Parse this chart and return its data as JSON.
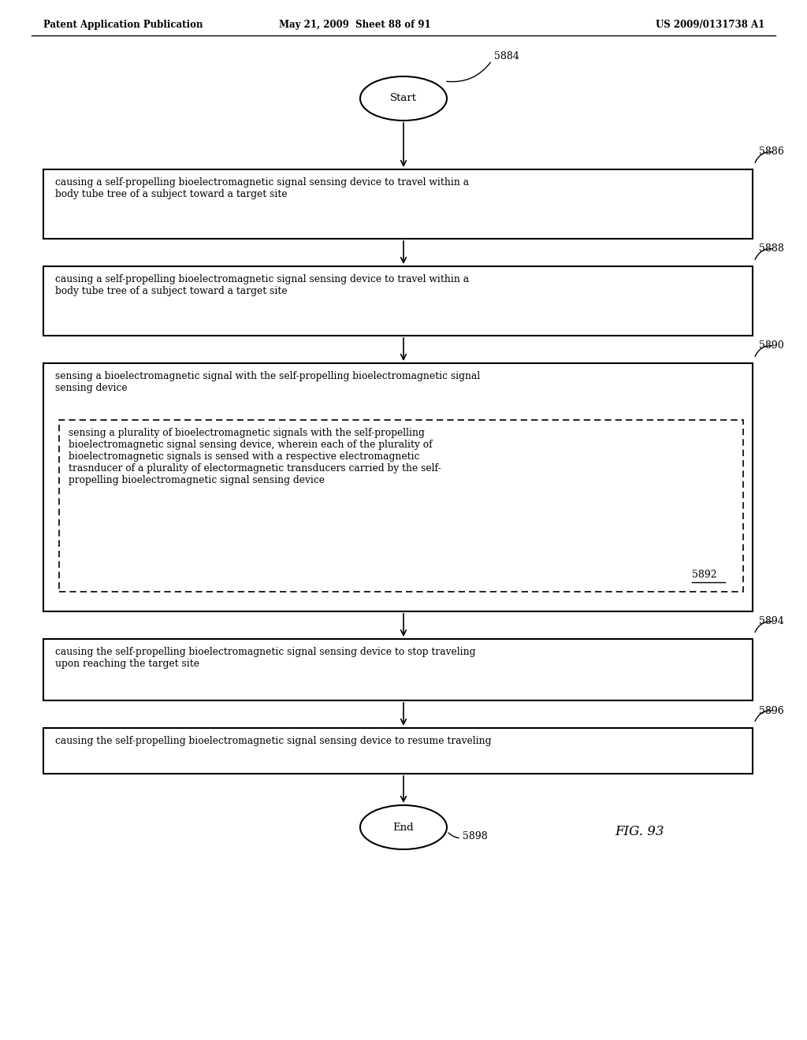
{
  "title_left": "Patent Application Publication",
  "title_mid": "May 21, 2009  Sheet 88 of 91",
  "title_right": "US 2009/0131738 A1",
  "fig_label": "FIG. 93",
  "start_label": "Start",
  "end_label": "End",
  "start_ref": "5884",
  "end_ref": "5898",
  "boxes": [
    {
      "ref": "5886",
      "text": "causing a self-propelling bioelectromagnetic signal sensing device to travel within a\nbody tube tree of a subject toward a target site",
      "dashed": false
    },
    {
      "ref": "5888",
      "text": "causing a self-propelling bioelectromagnetic signal sensing device to travel within a\nbody tube tree of a subject toward a target site",
      "dashed": false
    },
    {
      "ref": "5890",
      "text": "sensing a bioelectromagnetic signal with the self-propelling bioelectromagnetic signal\nsensing device",
      "dashed": false,
      "sub_box": {
        "ref": "5892",
        "text": "sensing a plurality of bioelectromagnetic signals with the self-propelling\nbioelectromagnetic signal sensing device, wherein each of the plurality of\nbioelectromagnetic signals is sensed with a respective electromagnetic\ntrasnducer of a plurality of electormagnetic transducers carried by the self-\npropelling bioelectromagnetic signal sensing device"
      }
    },
    {
      "ref": "5894",
      "text": "causing the self-propelling bioelectromagnetic signal sensing device to stop traveling\nupon reaching the target site",
      "dashed": false
    },
    {
      "ref": "5896",
      "text": "causing the self-propelling bioelectromagnetic signal sensing device to resume traveling",
      "dashed": false
    }
  ],
  "bg_color": "#ffffff",
  "text_color": "#000000",
  "box_edge_color": "#000000",
  "font_size_header": 9,
  "font_size_body": 9,
  "font_size_ref": 9
}
